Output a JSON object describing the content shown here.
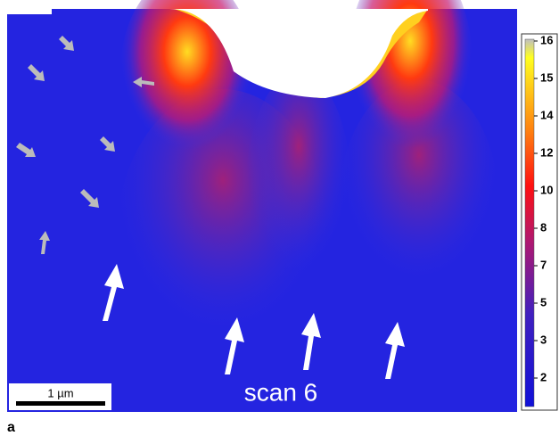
{
  "colorbar": {
    "ticks": [
      16,
      15,
      14,
      12,
      10,
      8,
      7,
      5,
      3,
      2
    ]
  },
  "scale_bar": {
    "label": "1 µm"
  },
  "caption": "scan 6",
  "panel_label": "a"
}
